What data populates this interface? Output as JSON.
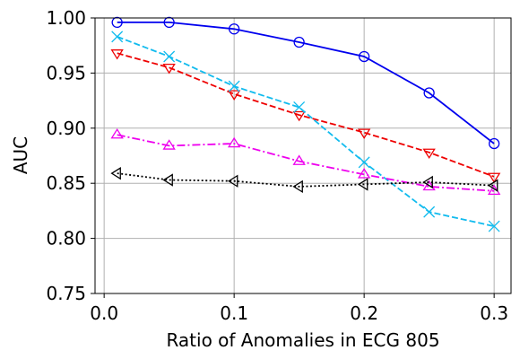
{
  "chart_data": {
    "type": "line",
    "title": "",
    "xlabel": "Ratio of Anomalies in ECG 805",
    "ylabel": "AUC",
    "xlim": [
      -0.007,
      0.313
    ],
    "ylim": [
      0.75,
      1.0
    ],
    "xticks": [
      0.0,
      0.1,
      0.2,
      0.3
    ],
    "xtick_labels": [
      "0.0",
      "0.1",
      "0.2",
      "0.3"
    ],
    "yticks": [
      0.75,
      0.8,
      0.85,
      0.9,
      0.95,
      1.0
    ],
    "ytick_labels": [
      "0.75",
      "0.80",
      "0.85",
      "0.90",
      "0.95",
      "1.00"
    ],
    "grid": true,
    "x": [
      0.01,
      0.05,
      0.1,
      0.15,
      0.2,
      0.25,
      0.3
    ],
    "series": [
      {
        "color": "#0000ee",
        "linestyle": "solid",
        "marker": "circle",
        "values": [
          0.996,
          0.996,
          0.99,
          0.978,
          0.965,
          0.932,
          0.886
        ]
      },
      {
        "color": "#ee0000",
        "linestyle": "dashed",
        "marker": "triangle-down",
        "values": [
          0.968,
          0.955,
          0.931,
          0.912,
          0.896,
          0.878,
          0.856
        ]
      },
      {
        "color": "#11bbee",
        "linestyle": "dashed",
        "marker": "x",
        "values": [
          0.983,
          0.965,
          0.938,
          0.919,
          0.869,
          0.824,
          0.811
        ]
      },
      {
        "color": "#ee00ee",
        "linestyle": "dashdot",
        "marker": "triangle-up",
        "values": [
          0.894,
          0.884,
          0.886,
          0.87,
          0.858,
          0.847,
          0.843
        ]
      },
      {
        "color": "#000000",
        "linestyle": "dotted",
        "marker": "triangle-left",
        "values": [
          0.859,
          0.853,
          0.852,
          0.847,
          0.849,
          0.851,
          0.848
        ]
      }
    ]
  }
}
